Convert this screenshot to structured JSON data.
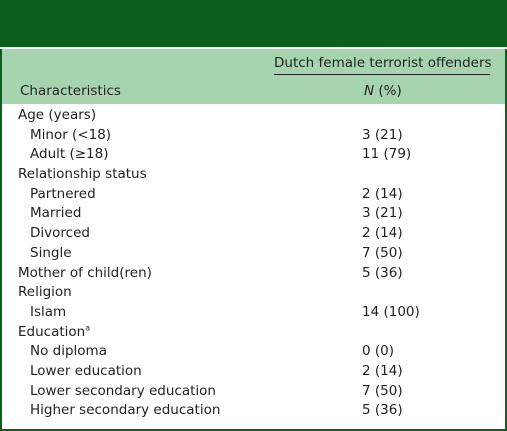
{
  "table": {
    "column_group": "Dutch female terrorist offenders",
    "col_characteristics": "Characteristics",
    "col_n_italic": "N",
    "col_n_suffix": " (%)",
    "rows": [
      {
        "label": "Age (years)",
        "value": "",
        "sub": false
      },
      {
        "label": "Minor (<18)",
        "value": "3 (21)",
        "sub": true
      },
      {
        "label": "Adult (≥18)",
        "value": "11 (79)",
        "sub": true
      },
      {
        "label": "Relationship status",
        "value": "",
        "sub": false
      },
      {
        "label": "Partnered",
        "value": "2 (14)",
        "sub": true
      },
      {
        "label": "Married",
        "value": "3 (21)",
        "sub": true
      },
      {
        "label": "Divorced",
        "value": "2 (14)",
        "sub": true
      },
      {
        "label": "Single",
        "value": "7 (50)",
        "sub": true
      },
      {
        "label": "Mother of child(ren)",
        "value": "5 (36)",
        "sub": false
      },
      {
        "label": "Religion",
        "value": "",
        "sub": false
      },
      {
        "label": "Islam",
        "value": "14 (100)",
        "sub": true
      },
      {
        "label": "Education",
        "value": "",
        "sub": false,
        "sup": "a"
      },
      {
        "label": "No diploma",
        "value": "0 (0)",
        "sub": true
      },
      {
        "label": "Lower education",
        "value": "2 (14)",
        "sub": true
      },
      {
        "label": "Lower secondary education",
        "value": "7 (50)",
        "sub": true
      },
      {
        "label": "Higher secondary education",
        "value": "5 (36)",
        "sub": true
      }
    ]
  },
  "colors": {
    "band": "#0b5e1c",
    "header_fill": "#a6d4ae",
    "text": "#231f20"
  }
}
